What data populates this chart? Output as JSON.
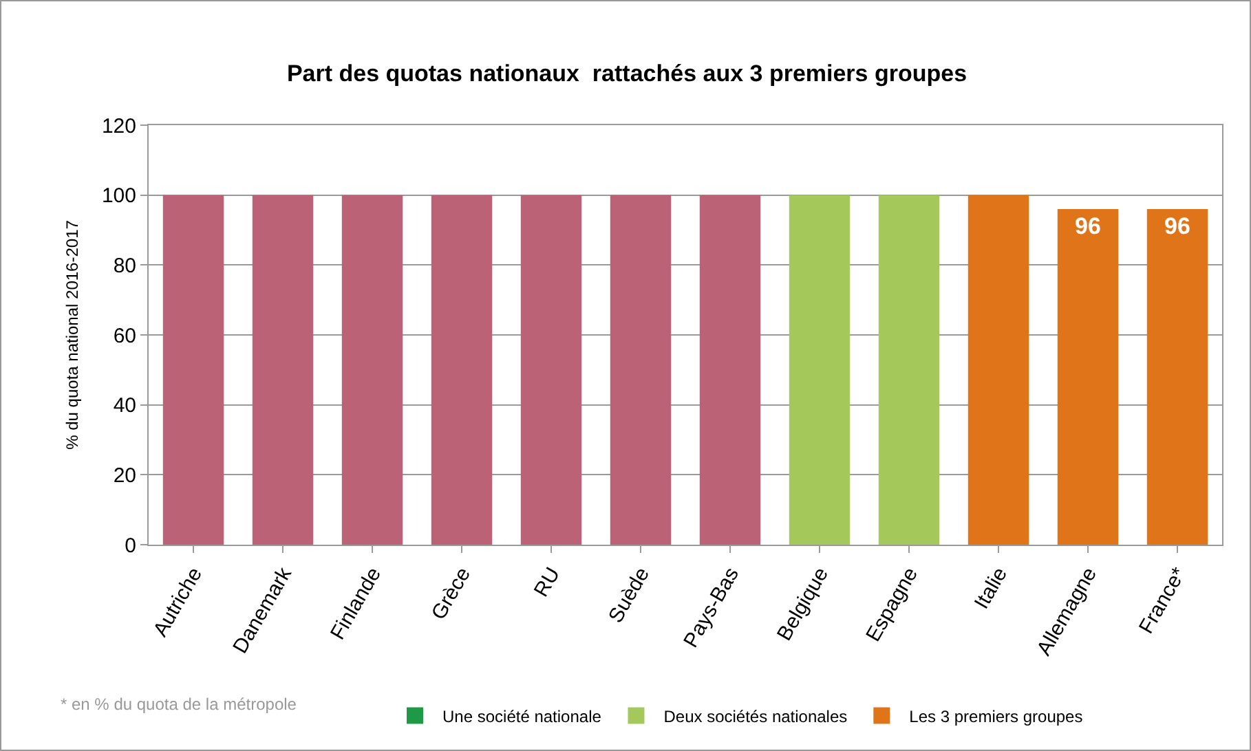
{
  "chart_data": {
    "type": "bar",
    "title": "Part des quotas nationaux  rattachés aux 3 premiers groupes",
    "ylabel": "% du quota national 2016-2017",
    "categories": [
      "Autriche",
      "Danemark",
      "Finlande",
      "Grèce",
      "RU",
      "Suède",
      "Pays-Bas",
      "Belgique",
      "Espagne",
      "Italie",
      "Allemagne",
      "France*"
    ],
    "series": [
      {
        "color": "#bc6276",
        "values": [
          100,
          100,
          100,
          100,
          100,
          100,
          100,
          null,
          null,
          null,
          null,
          null
        ]
      },
      {
        "name": "Une société nationale",
        "color": "#1e9a46",
        "values": [
          null,
          null,
          null,
          null,
          null,
          null,
          null,
          null,
          null,
          null,
          null,
          null
        ]
      },
      {
        "name": "Deux sociétés nationales",
        "color": "#a4c95a",
        "values": [
          null,
          null,
          null,
          null,
          null,
          null,
          null,
          100,
          100,
          null,
          null,
          null
        ]
      },
      {
        "name": "Les 3 premiers groupes",
        "color": "#df7418",
        "values": [
          null,
          null,
          null,
          null,
          null,
          null,
          null,
          null,
          null,
          100,
          96,
          96
        ],
        "value_labels": [
          null,
          null,
          null,
          null,
          null,
          null,
          null,
          null,
          null,
          null,
          "96",
          "96"
        ]
      }
    ],
    "ylim": [
      0,
      120
    ],
    "yticks": [
      0,
      20,
      40,
      60,
      80,
      100,
      120
    ],
    "grid": "y",
    "legend": "bottom",
    "annotations": [
      "* en % du quota de la métropole"
    ]
  }
}
